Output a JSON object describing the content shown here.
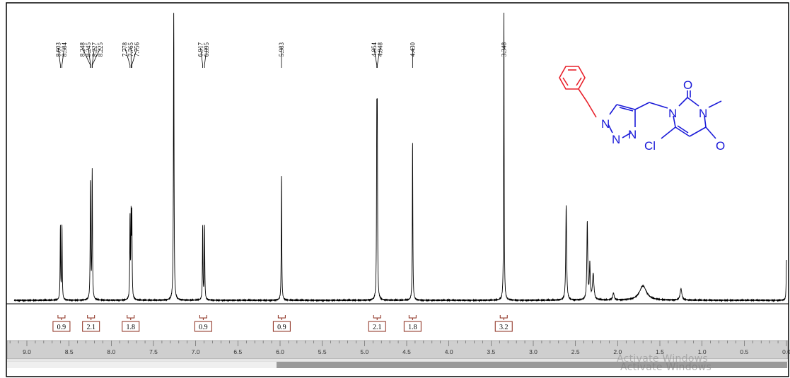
{
  "chart_data": {
    "type": "line",
    "x_axis": {
      "min": 0.0,
      "max": 9.15,
      "reversed": true,
      "tick_labels": [
        "9.0",
        "8.5",
        "8.0",
        "7.5",
        "7.0",
        "6.5",
        "6.0",
        "5.5",
        "5.0",
        "4.5",
        "4.0",
        "3.5",
        "3.0",
        "2.5",
        "2.0",
        "1.5",
        "1.0",
        "0.5",
        "0.0"
      ]
    },
    "peak_groups": [
      {
        "labels": [
          "8.603",
          "8.584"
        ],
        "peaks": [
          8.603,
          8.584
        ],
        "height": 0.26
      },
      {
        "labels": [
          "8.248",
          "8.245",
          "8.227",
          "8.225"
        ],
        "peaks": [
          8.248,
          8.245,
          8.227,
          8.225
        ],
        "height": 0.24
      },
      {
        "labels": [
          "7.778",
          "7.765",
          "7.756"
        ],
        "peaks": [
          7.778,
          7.765,
          7.756
        ],
        "height": 0.28
      },
      {
        "labels": [
          "6.917",
          "6.895"
        ],
        "peaks": [
          6.917,
          6.895
        ],
        "height": 0.26
      },
      {
        "labels": [
          "5.983"
        ],
        "peaks": [
          5.983
        ],
        "height": 0.44
      },
      {
        "labels": [
          "4.854",
          "4.848"
        ],
        "peaks": [
          4.854,
          4.848
        ],
        "height": 0.56
      },
      {
        "labels": [
          "4.430"
        ],
        "peaks": [
          4.43
        ],
        "height": 0.56
      },
      {
        "labels": [
          "3.348"
        ],
        "peaks": [
          3.348
        ],
        "height": 1.0
      }
    ],
    "unlabeled_peaks": [
      {
        "x": 7.26,
        "height": 1.0,
        "width": 0.004
      },
      {
        "x": 2.61,
        "height": 0.33,
        "width": 0.006
      },
      {
        "x": 2.36,
        "height": 0.27,
        "width": 0.006
      },
      {
        "x": 2.33,
        "height": 0.12,
        "width": 0.006
      },
      {
        "x": 2.29,
        "height": 0.09,
        "width": 0.01
      },
      {
        "x": 2.05,
        "height": 0.025,
        "width": 0.01
      },
      {
        "x": 1.7,
        "height": 0.05,
        "width": 0.05
      },
      {
        "x": 1.25,
        "height": 0.04,
        "width": 0.012
      },
      {
        "x": 0.0,
        "height": 0.14,
        "width": 0.004
      }
    ],
    "integrals": [
      {
        "x": 8.59,
        "value": "0.9"
      },
      {
        "x": 8.24,
        "value": "2.1"
      },
      {
        "x": 7.77,
        "value": "1.8"
      },
      {
        "x": 6.91,
        "value": "0.9"
      },
      {
        "x": 5.98,
        "value": "0.9"
      },
      {
        "x": 4.85,
        "value": "2.1"
      },
      {
        "x": 4.43,
        "value": "1.8"
      },
      {
        "x": 3.35,
        "value": "3.2"
      }
    ]
  },
  "structure": {
    "atom_labels": {
      "n1": "N",
      "n2": "N",
      "n3": "N",
      "n_uracil_1": "N",
      "n_uracil_3": "N",
      "o2": "O",
      "o4": "O",
      "cl": "Cl"
    },
    "colors": {
      "benzyl": "#e8202a",
      "core": "#1a1ad8"
    }
  },
  "watermark": {
    "line1": "Activate Windows",
    "line2": "Activate Windows"
  },
  "colors": {
    "frame": "#000000",
    "ruler_bg": "#cfcfcf",
    "scroll_thumb": "#9a9a9a",
    "integral_box": "#8a2a1a",
    "spectrum": "#000000"
  }
}
